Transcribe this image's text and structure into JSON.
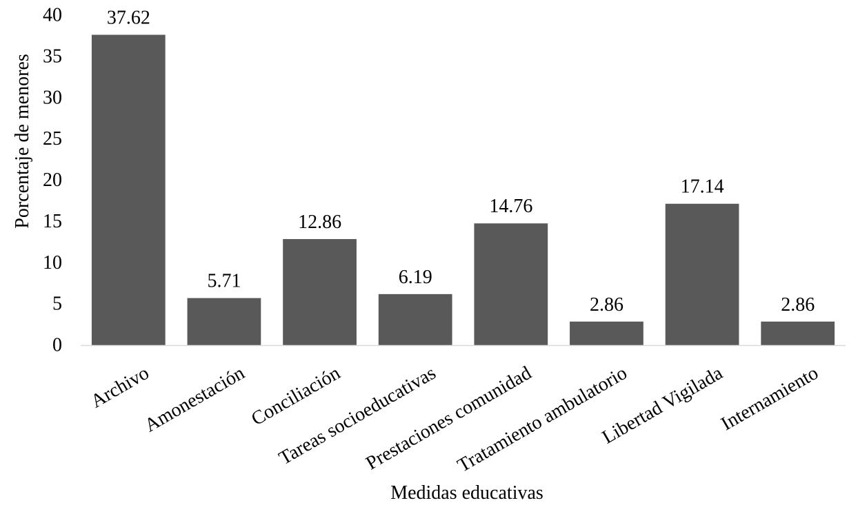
{
  "chart_data": {
    "type": "bar",
    "categories": [
      "Archivo",
      "Amonestación",
      "Conciliación",
      "Tareas socioeducativas",
      "Prestaciones comunidad",
      "Tratamiento ambulatorio",
      "Libertad Vigilada",
      "Internamiento"
    ],
    "values": [
      37.62,
      5.71,
      12.86,
      6.19,
      14.76,
      2.86,
      17.14,
      2.86
    ],
    "data_labels": [
      "37.62",
      "5.71",
      "12.86",
      "6.19",
      "14.76",
      "2.86",
      "17.14",
      "2.86"
    ],
    "title": "",
    "xlabel": "Medidas educativas",
    "ylabel": "Porcentaje de menores",
    "ylim": [
      0,
      40
    ],
    "yticks": [
      0,
      5,
      10,
      15,
      20,
      25,
      30,
      35,
      40
    ],
    "grid": false,
    "legend": "none",
    "bar_color": "#595959",
    "axis_color": "#d9d9d9"
  }
}
